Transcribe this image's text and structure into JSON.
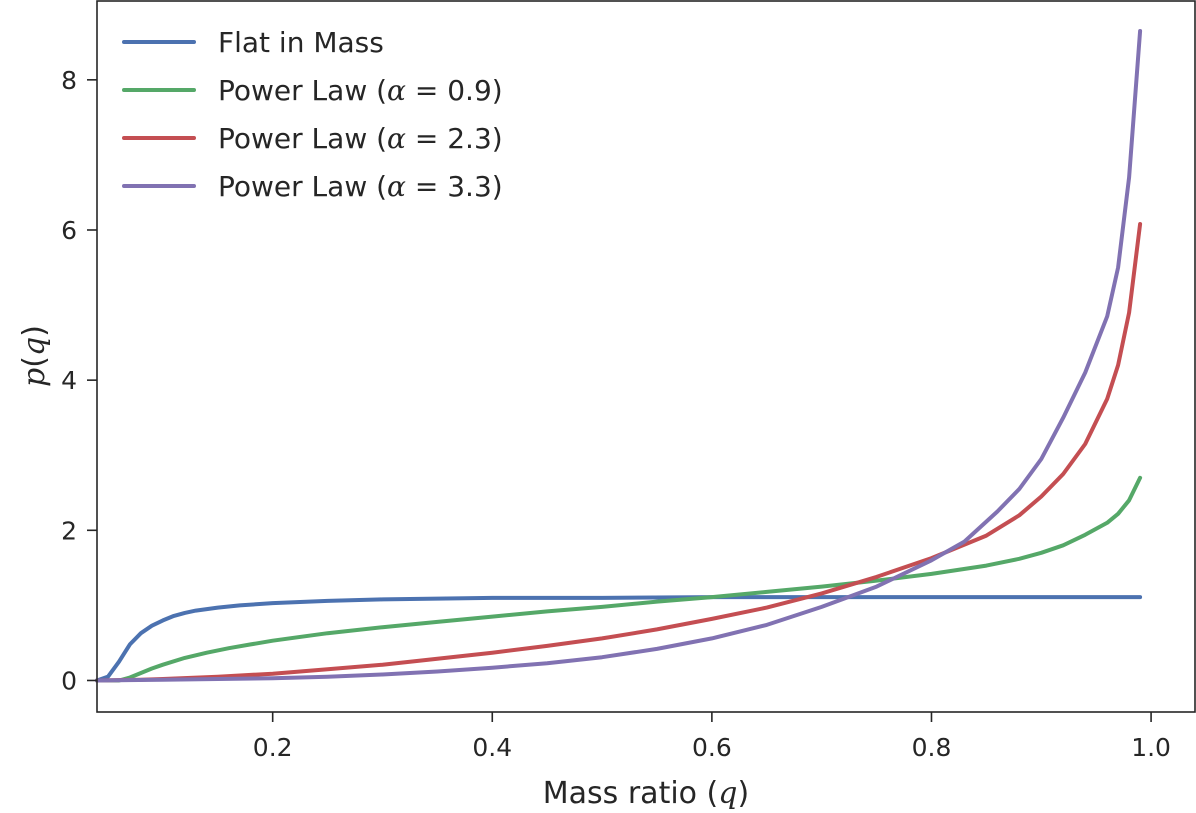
{
  "chart_data": {
    "type": "line",
    "xlabel": "Mass ratio (q)",
    "ylabel": "p(q)",
    "xlim": [
      0.04,
      1.04
    ],
    "ylim": [
      -0.42,
      9.05
    ],
    "xticks": [
      0.2,
      0.4,
      0.6,
      0.8,
      1.0
    ],
    "xtick_labels": [
      "0.2",
      "0.4",
      "0.6",
      "0.8",
      "1.0"
    ],
    "yticks": [
      0,
      2,
      4,
      6,
      8
    ],
    "ytick_labels": [
      "0",
      "2",
      "4",
      "6",
      "8"
    ],
    "grid": false,
    "legend_position": "upper-left",
    "series": [
      {
        "name": "Flat in Mass",
        "label_parts": [
          "Flat in Mass"
        ],
        "color": "#4c72b0",
        "points": [
          [
            0.04,
            0.0
          ],
          [
            0.05,
            0.05
          ],
          [
            0.06,
            0.25
          ],
          [
            0.07,
            0.48
          ],
          [
            0.08,
            0.63
          ],
          [
            0.09,
            0.73
          ],
          [
            0.1,
            0.8
          ],
          [
            0.11,
            0.86
          ],
          [
            0.12,
            0.9
          ],
          [
            0.13,
            0.93
          ],
          [
            0.15,
            0.97
          ],
          [
            0.17,
            1.0
          ],
          [
            0.2,
            1.03
          ],
          [
            0.25,
            1.06
          ],
          [
            0.3,
            1.08
          ],
          [
            0.35,
            1.09
          ],
          [
            0.4,
            1.1
          ],
          [
            0.5,
            1.1
          ],
          [
            0.6,
            1.11
          ],
          [
            0.7,
            1.11
          ],
          [
            0.8,
            1.11
          ],
          [
            0.9,
            1.11
          ],
          [
            0.99,
            1.11
          ]
        ]
      },
      {
        "name": "Power Law (α = 0.9)",
        "label_parts": [
          "Power Law (",
          "α",
          " = 0.9)"
        ],
        "color": "#55a868",
        "points": [
          [
            0.04,
            0.0
          ],
          [
            0.06,
            0.0
          ],
          [
            0.07,
            0.04
          ],
          [
            0.08,
            0.1
          ],
          [
            0.09,
            0.16
          ],
          [
            0.1,
            0.21
          ],
          [
            0.12,
            0.3
          ],
          [
            0.14,
            0.37
          ],
          [
            0.16,
            0.43
          ],
          [
            0.18,
            0.48
          ],
          [
            0.2,
            0.53
          ],
          [
            0.25,
            0.63
          ],
          [
            0.3,
            0.71
          ],
          [
            0.35,
            0.78
          ],
          [
            0.4,
            0.85
          ],
          [
            0.45,
            0.92
          ],
          [
            0.5,
            0.98
          ],
          [
            0.55,
            1.05
          ],
          [
            0.6,
            1.11
          ],
          [
            0.65,
            1.18
          ],
          [
            0.7,
            1.25
          ],
          [
            0.75,
            1.33
          ],
          [
            0.8,
            1.42
          ],
          [
            0.85,
            1.53
          ],
          [
            0.88,
            1.62
          ],
          [
            0.9,
            1.7
          ],
          [
            0.92,
            1.8
          ],
          [
            0.94,
            1.94
          ],
          [
            0.96,
            2.1
          ],
          [
            0.97,
            2.22
          ],
          [
            0.98,
            2.4
          ],
          [
            0.99,
            2.7
          ]
        ]
      },
      {
        "name": "Power Law (α = 2.3)",
        "label_parts": [
          "Power Law (",
          "α",
          " = 2.3)"
        ],
        "color": "#c44e52",
        "points": [
          [
            0.04,
            0.0
          ],
          [
            0.08,
            0.01
          ],
          [
            0.1,
            0.02
          ],
          [
            0.15,
            0.05
          ],
          [
            0.2,
            0.09
          ],
          [
            0.25,
            0.15
          ],
          [
            0.3,
            0.21
          ],
          [
            0.35,
            0.29
          ],
          [
            0.4,
            0.37
          ],
          [
            0.45,
            0.46
          ],
          [
            0.5,
            0.56
          ],
          [
            0.55,
            0.68
          ],
          [
            0.6,
            0.82
          ],
          [
            0.65,
            0.97
          ],
          [
            0.7,
            1.16
          ],
          [
            0.75,
            1.38
          ],
          [
            0.8,
            1.63
          ],
          [
            0.85,
            1.93
          ],
          [
            0.88,
            2.2
          ],
          [
            0.9,
            2.45
          ],
          [
            0.92,
            2.75
          ],
          [
            0.94,
            3.15
          ],
          [
            0.96,
            3.75
          ],
          [
            0.97,
            4.2
          ],
          [
            0.98,
            4.9
          ],
          [
            0.99,
            6.08
          ]
        ]
      },
      {
        "name": "Power Law (α = 3.3)",
        "label_parts": [
          "Power Law (",
          "α",
          " = 3.3)"
        ],
        "color": "#8172b2",
        "points": [
          [
            0.04,
            0.0
          ],
          [
            0.1,
            0.01
          ],
          [
            0.15,
            0.02
          ],
          [
            0.2,
            0.03
          ],
          [
            0.25,
            0.05
          ],
          [
            0.3,
            0.08
          ],
          [
            0.35,
            0.12
          ],
          [
            0.4,
            0.17
          ],
          [
            0.45,
            0.23
          ],
          [
            0.5,
            0.31
          ],
          [
            0.55,
            0.42
          ],
          [
            0.6,
            0.56
          ],
          [
            0.65,
            0.74
          ],
          [
            0.7,
            0.98
          ],
          [
            0.75,
            1.25
          ],
          [
            0.8,
            1.6
          ],
          [
            0.83,
            1.85
          ],
          [
            0.86,
            2.25
          ],
          [
            0.88,
            2.55
          ],
          [
            0.9,
            2.95
          ],
          [
            0.92,
            3.5
          ],
          [
            0.94,
            4.1
          ],
          [
            0.96,
            4.85
          ],
          [
            0.97,
            5.5
          ],
          [
            0.98,
            6.7
          ],
          [
            0.99,
            8.65
          ]
        ]
      }
    ]
  }
}
